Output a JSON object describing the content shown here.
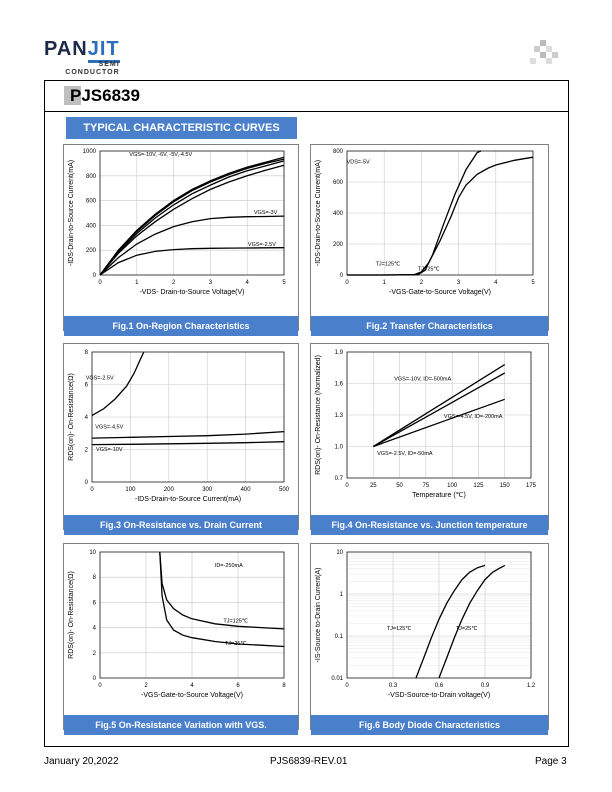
{
  "header": {
    "logo_text_a": "PAN",
    "logo_text_b": "JIT",
    "logo_sub1": "SEMI",
    "logo_sub2": "CONDUCTOR",
    "part_prefix": "P",
    "part_rest": "JS6839"
  },
  "section_title": "TYPICAL CHARACTERISTIC CURVES",
  "figures": [
    {
      "caption": "Fig.1 On-Region Characteristics",
      "xlabel": "-V₂ₛ- Drain-to-Source Voltage(V)",
      "ylabel": "-I₂ₛ-Drain-to-Source Current(mA)"
    },
    {
      "caption": "Fig.2 Transfer Characteristics"
    },
    {
      "caption": "Fig.3 On-Resistance vs. Drain Current"
    },
    {
      "caption": "Fig.4 On-Resistance vs. Junction temperature"
    },
    {
      "caption": "Fig.5 On-Resistance Variation with VGS."
    },
    {
      "caption": "Fig.6 Body Diode Characteristics"
    }
  ],
  "chart_data": [
    {
      "type": "line",
      "id": "fig1",
      "xlabel": "-VDS- Drain-to-Source Voltage(V)",
      "ylabel": "-IDS-Drain-to-Source Current(mA)",
      "xlim": [
        0,
        5
      ],
      "ylim": [
        0,
        1000
      ],
      "xticks": [
        "0",
        "1",
        "2",
        "3",
        "4",
        "5"
      ],
      "yticks": [
        "0",
        "200",
        "400",
        "600",
        "800",
        "1000"
      ],
      "annotations": [
        "VGS=-10V, -6V, -5V,-4.5V",
        "VGS=-3V",
        "VGS=-2.5V"
      ],
      "series": [
        {
          "x": [
            0,
            0.5,
            1,
            1.5,
            2,
            2.5,
            3,
            3.5,
            4,
            4.5,
            5
          ],
          "y": [
            0,
            200,
            360,
            490,
            600,
            690,
            760,
            820,
            870,
            910,
            950
          ]
        },
        {
          "x": [
            0,
            0.5,
            1,
            1.5,
            2,
            2.5,
            3,
            3.5,
            4,
            4.5,
            5
          ],
          "y": [
            0,
            195,
            350,
            480,
            590,
            680,
            750,
            810,
            860,
            900,
            935
          ]
        },
        {
          "x": [
            0,
            0.5,
            1,
            1.5,
            2,
            2.5,
            3,
            3.5,
            4,
            4.5,
            5
          ],
          "y": [
            0,
            185,
            335,
            460,
            565,
            655,
            725,
            790,
            840,
            880,
            920
          ]
        },
        {
          "x": [
            0,
            0.5,
            1,
            1.5,
            2,
            2.5,
            3,
            3.5,
            4,
            4.5,
            5
          ],
          "y": [
            0,
            175,
            315,
            430,
            530,
            615,
            690,
            750,
            800,
            845,
            885
          ]
        },
        {
          "x": [
            0,
            0.5,
            1,
            1.5,
            2,
            2.5,
            3,
            3.5,
            4,
            4.5,
            5
          ],
          "y": [
            0,
            140,
            250,
            330,
            390,
            430,
            455,
            465,
            470,
            472,
            475
          ]
        },
        {
          "x": [
            0,
            0.5,
            1,
            1.5,
            2,
            2.5,
            3,
            3.5,
            4,
            4.5,
            5
          ],
          "y": [
            0,
            100,
            160,
            190,
            205,
            212,
            215,
            217,
            218,
            219,
            220
          ]
        }
      ]
    },
    {
      "type": "line",
      "id": "fig2",
      "xlabel": "-VGS-Gate-to-Source Voltage(V)",
      "ylabel": "-IDS-Drain-to-Source Current(mA)",
      "xlim": [
        0,
        5
      ],
      "ylim": [
        0,
        800
      ],
      "xticks": [
        "0",
        "1",
        "2",
        "3",
        "4",
        "5"
      ],
      "yticks": [
        "0",
        "200",
        "400",
        "600",
        "800"
      ],
      "annotations": [
        "VDS=-5V",
        "TJ=125℃",
        "TJ=25℃"
      ],
      "series": [
        {
          "x": [
            0,
            1,
            1.8,
            2,
            2.2,
            2.5,
            2.8,
            3,
            3.2,
            3.5,
            3.8,
            4,
            4.5,
            5
          ],
          "y": [
            0,
            0,
            2,
            20,
            80,
            220,
            380,
            500,
            580,
            650,
            690,
            710,
            740,
            760
          ]
        },
        {
          "x": [
            0,
            1,
            1.9,
            2.1,
            2.3,
            2.6,
            2.9,
            3.2,
            3.5,
            3.6
          ],
          "y": [
            0,
            0,
            2,
            30,
            130,
            330,
            520,
            680,
            790,
            800
          ]
        }
      ]
    },
    {
      "type": "line",
      "id": "fig3",
      "xlabel": "-IDS-Drain-to-Source Current(mA)",
      "ylabel": "RDS(on)- On-Resistance(Ω)",
      "xlim": [
        0,
        500
      ],
      "ylim": [
        0,
        8
      ],
      "xticks": [
        "0",
        "100",
        "200",
        "300",
        "400",
        "500"
      ],
      "yticks": [
        "0",
        "2",
        "4",
        "6",
        "8"
      ],
      "annotations": [
        "VGS=-2.5V",
        "VGS=-4.5V",
        "VGS=-10V"
      ],
      "series": [
        {
          "x": [
            0,
            30,
            60,
            90,
            110,
            125,
            135
          ],
          "y": [
            4.1,
            4.5,
            5.1,
            5.9,
            6.7,
            7.5,
            8
          ]
        },
        {
          "x": [
            0,
            100,
            200,
            300,
            400,
            500
          ],
          "y": [
            2.7,
            2.75,
            2.8,
            2.85,
            2.95,
            3.1
          ]
        },
        {
          "x": [
            0,
            100,
            200,
            300,
            400,
            500
          ],
          "y": [
            2.3,
            2.32,
            2.35,
            2.38,
            2.42,
            2.48
          ]
        }
      ]
    },
    {
      "type": "line",
      "id": "fig4",
      "xlabel": "Temperature (℃)",
      "ylabel": "RDS(on)- On-Resistance (Normalized)",
      "xlim": [
        0,
        175
      ],
      "ylim": [
        0.7,
        1.9
      ],
      "xticks": [
        "0",
        "25",
        "50",
        "75",
        "100",
        "125",
        "150",
        "175"
      ],
      "yticks": [
        "0.7",
        "1.0",
        "1.3",
        "1.6",
        "1.9"
      ],
      "annotations": [
        "VGS=-10V, ID=-500mA",
        "VGS=-4.5V, ID=-200mA",
        "VGS=-2.5V, ID=-50mA"
      ],
      "series": [
        {
          "x": [
            25,
            150
          ],
          "y": [
            1.0,
            1.78
          ]
        },
        {
          "x": [
            25,
            150
          ],
          "y": [
            1.0,
            1.7
          ]
        },
        {
          "x": [
            25,
            150
          ],
          "y": [
            1.0,
            1.45
          ]
        }
      ]
    },
    {
      "type": "line",
      "id": "fig5",
      "xlabel": "-VGS-Gate-to-Source  Voltage(V)",
      "ylabel": "RDS(on)- On-Resistance(Ω)",
      "xlim": [
        0,
        8
      ],
      "ylim": [
        0,
        10
      ],
      "xticks": [
        "0",
        "2",
        "4",
        "6",
        "8"
      ],
      "yticks": [
        "0",
        "2",
        "4",
        "6",
        "8",
        "10"
      ],
      "annotations": [
        "ID=-250mA",
        "TJ=125℃",
        "TJ=25℃"
      ],
      "series": [
        {
          "x": [
            2.6,
            2.7,
            2.9,
            3.2,
            3.6,
            4,
            5,
            6,
            7,
            8
          ],
          "y": [
            10,
            7.5,
            6.2,
            5.5,
            5,
            4.7,
            4.3,
            4.1,
            4,
            3.9
          ]
        },
        {
          "x": [
            2.6,
            2.7,
            2.9,
            3.2,
            3.6,
            4,
            5,
            6,
            7,
            8
          ],
          "y": [
            10,
            6.5,
            4.6,
            3.8,
            3.4,
            3.2,
            2.9,
            2.7,
            2.6,
            2.5
          ]
        }
      ]
    },
    {
      "type": "line",
      "id": "fig6",
      "xlabel": "-VSD-Source-to-Drain  voltage(V)",
      "ylabel": "-IS-Source  to-Drain Current(A)",
      "xlim": [
        0,
        1.2
      ],
      "ylim": [
        0.01,
        10
      ],
      "yscale": "log",
      "xticks": [
        "0",
        "0.3",
        "0.6",
        "0.9",
        "1.2"
      ],
      "yticks": [
        "0.01",
        "0.1",
        "1",
        "10"
      ],
      "annotations": [
        "TJ=125℃",
        "TJ=25℃"
      ],
      "series": [
        {
          "x": [
            0.45,
            0.5,
            0.55,
            0.6,
            0.65,
            0.7,
            0.75,
            0.8,
            0.85,
            0.9
          ],
          "y": [
            0.01,
            0.03,
            0.09,
            0.25,
            0.6,
            1.2,
            2.2,
            3.3,
            4.2,
            4.8
          ]
        },
        {
          "x": [
            0.6,
            0.65,
            0.7,
            0.75,
            0.8,
            0.85,
            0.9,
            0.95,
            1.0,
            1.03
          ],
          "y": [
            0.01,
            0.03,
            0.09,
            0.25,
            0.6,
            1.2,
            2.2,
            3.3,
            4.2,
            4.8
          ]
        }
      ]
    }
  ],
  "footer": {
    "date": "January 20,2022",
    "rev": "PJS6839-REV.01",
    "page": "Page 3"
  }
}
